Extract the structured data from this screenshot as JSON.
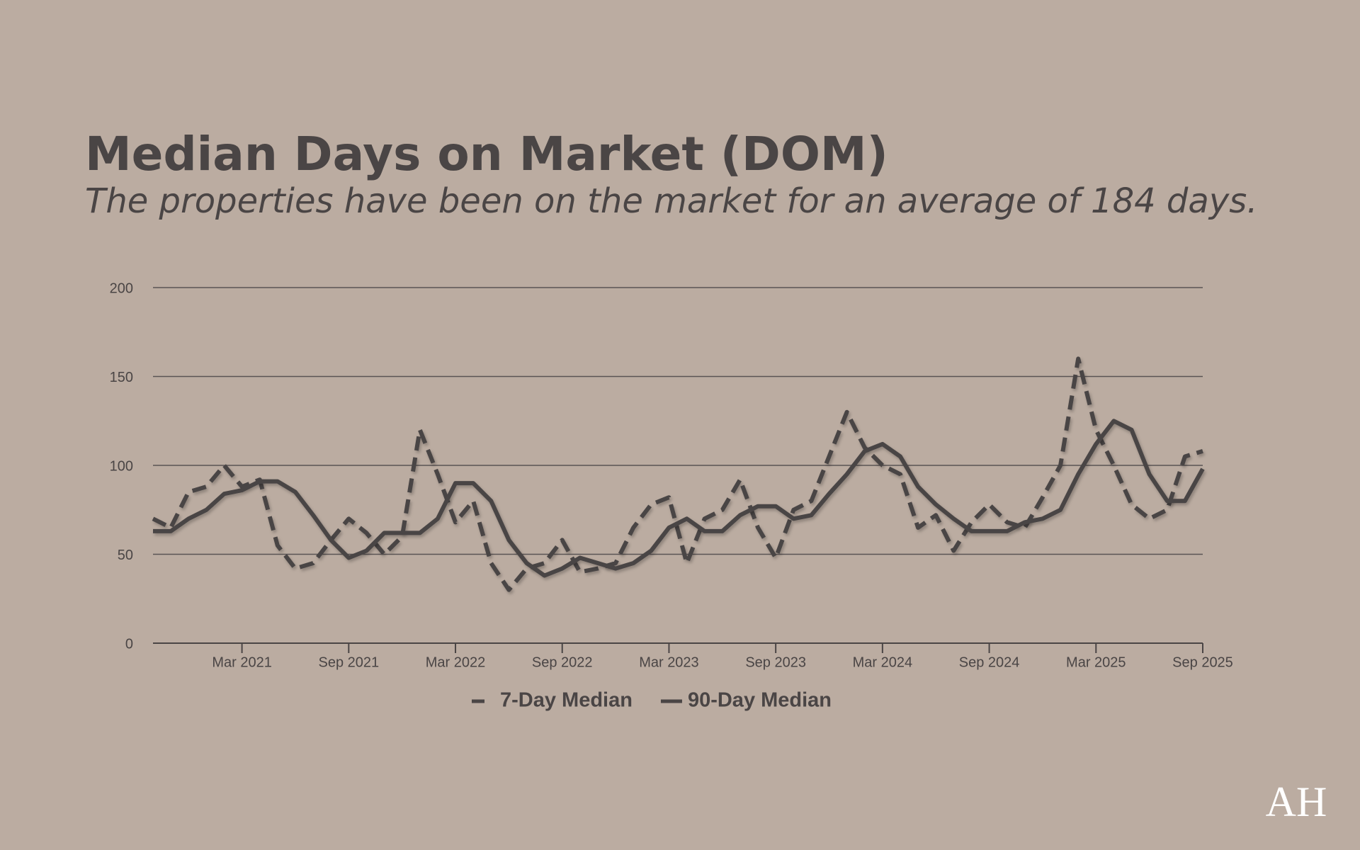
{
  "chart_data": {
    "type": "line",
    "title": "Median Days on Market (DOM)",
    "subtitle": "The properties have been on the market for an average of 184 days.",
    "x": [
      "2020-10",
      "2020-11",
      "2020-12",
      "2021-01",
      "2021-02",
      "2021-03",
      "2021-04",
      "2021-05",
      "2021-06",
      "2021-07",
      "2021-08",
      "2021-09",
      "2021-10",
      "2021-11",
      "2021-12",
      "2022-01",
      "2022-02",
      "2022-03",
      "2022-04",
      "2022-05",
      "2022-06",
      "2022-07",
      "2022-08",
      "2022-09",
      "2022-10",
      "2022-11",
      "2022-12",
      "2023-01",
      "2023-02",
      "2023-03",
      "2023-04",
      "2023-05",
      "2023-06",
      "2023-07",
      "2023-08",
      "2023-09",
      "2023-10",
      "2023-11",
      "2023-12",
      "2024-01",
      "2024-02",
      "2024-03",
      "2024-04",
      "2024-05",
      "2024-06",
      "2024-07",
      "2024-08",
      "2024-09",
      "2024-10",
      "2024-11",
      "2024-12",
      "2025-01",
      "2025-02",
      "2025-03",
      "2025-04",
      "2025-05",
      "2025-06",
      "2025-07",
      "2025-08",
      "2025-09"
    ],
    "series": [
      {
        "name": "7-Day Median",
        "color": "#4a4545",
        "dash": true,
        "values": [
          70,
          65,
          85,
          88,
          100,
          88,
          92,
          55,
          42,
          45,
          58,
          70,
          62,
          50,
          60,
          120,
          95,
          68,
          80,
          45,
          30,
          42,
          45,
          58,
          40,
          42,
          45,
          65,
          78,
          82,
          45,
          70,
          75,
          92,
          65,
          48,
          75,
          80,
          105,
          130,
          110,
          100,
          95,
          65,
          72,
          52,
          68,
          78,
          68,
          65,
          82,
          100,
          160,
          120,
          100,
          78,
          70,
          75,
          105,
          108
        ]
      },
      {
        "name": "90-Day Median",
        "color": "#4a4545",
        "dash": false,
        "values": [
          63,
          63,
          70,
          75,
          84,
          86,
          91,
          91,
          85,
          72,
          58,
          48,
          52,
          62,
          62,
          62,
          70,
          90,
          90,
          80,
          58,
          45,
          38,
          42,
          48,
          45,
          42,
          45,
          52,
          65,
          70,
          63,
          63,
          72,
          77,
          77,
          70,
          72,
          84,
          95,
          108,
          112,
          105,
          88,
          78,
          70,
          63,
          63,
          63,
          68,
          70,
          75,
          95,
          112,
          125,
          120,
          95,
          80,
          80,
          98
        ]
      }
    ],
    "xlim": [
      "2020-10",
      "2025-09"
    ],
    "xticks": [
      {
        "value": "2021-03",
        "label": "Mar 2021"
      },
      {
        "value": "2021-09",
        "label": "Sep 2021"
      },
      {
        "value": "2022-03",
        "label": "Mar 2022"
      },
      {
        "value": "2022-09",
        "label": "Sep 2022"
      },
      {
        "value": "2023-03",
        "label": "Mar 2023"
      },
      {
        "value": "2023-09",
        "label": "Sep 2023"
      },
      {
        "value": "2024-03",
        "label": "Mar 2024"
      },
      {
        "value": "2024-09",
        "label": "Sep 2024"
      },
      {
        "value": "2025-03",
        "label": "Mar 2025"
      },
      {
        "value": "2025-09",
        "label": "Sep 2025"
      }
    ],
    "ylim": [
      0,
      200
    ],
    "yticks": [
      0,
      50,
      100,
      150,
      200
    ],
    "grid": true,
    "legend": "bottom",
    "logo": "AH"
  }
}
